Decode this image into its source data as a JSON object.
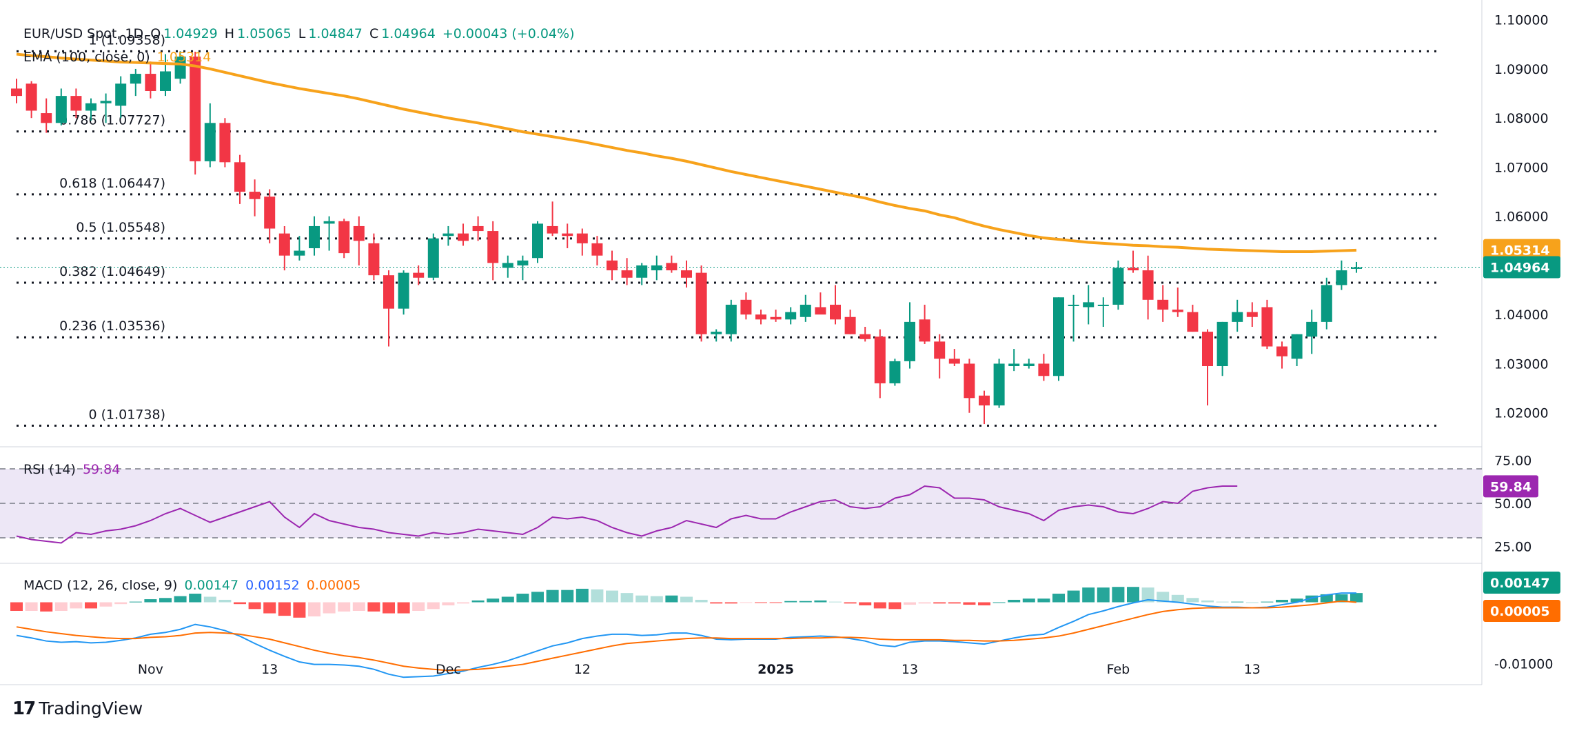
{
  "legend": {
    "symbol": "EUR/USD Spot, 1D",
    "open_label": "O",
    "open": "1.04929",
    "high_label": "H",
    "high": "1.05065",
    "low_label": "L",
    "low": "1.04847",
    "close_label": "C",
    "close": "1.04964",
    "change": "+0.00043 (+0.04%)",
    "ema_label": "EMA (100, close, 0)",
    "ema_value": "1.05314",
    "rsi_label": "RSI (14)",
    "rsi_value": "59.84",
    "macd_label": "MACD (12, 26, close, 9)",
    "macd_hist": "0.00147",
    "macd_line": "0.00152",
    "macd_signal": "0.00005"
  },
  "branding": {
    "name": "TradingView",
    "mark": "17"
  },
  "colors": {
    "up": "#089981",
    "down": "#f23645",
    "ema": "#f7a21b",
    "rsi": "#9c27b0",
    "rsi_band": "#ede7f6",
    "macd": "#2196f3",
    "signal": "#ff6d00",
    "hist_up_strong": "#26a69a",
    "hist_up_weak": "#b2dfdb",
    "hist_down_strong": "#ff5252",
    "hist_down_weak": "#ffcdd2"
  },
  "chart_data": [
    {
      "type": "candlestick",
      "title": "EUR/USD Spot, 1D",
      "x_ticks": [
        "Nov",
        "13",
        "Dec",
        "12",
        "2025",
        "13",
        "Feb",
        "13"
      ],
      "y_ticks": [
        "1.10000",
        "1.09000",
        "1.08000",
        "1.07000",
        "1.06000",
        "1.04000",
        "1.03000",
        "1.02000"
      ],
      "ylim": [
        1.0135,
        1.1015
      ],
      "last_price": "1.04964",
      "ema_price": "1.05314",
      "ohlc": [
        [
          1.086,
          1.088,
          1.083,
          1.0845
        ],
        [
          1.087,
          1.0875,
          1.08,
          1.0815
        ],
        [
          1.081,
          1.084,
          1.077,
          1.079
        ],
        [
          1.079,
          1.086,
          1.0785,
          1.0845
        ],
        [
          1.0845,
          1.086,
          1.08,
          1.0815
        ],
        [
          1.0815,
          1.084,
          1.0795,
          1.083
        ],
        [
          1.083,
          1.085,
          1.079,
          1.0835
        ],
        [
          1.0825,
          1.0885,
          1.08,
          1.087
        ],
        [
          1.087,
          1.09,
          1.0845,
          1.089
        ],
        [
          1.089,
          1.0915,
          1.084,
          1.0855
        ],
        [
          1.0855,
          1.093,
          1.0845,
          1.0895
        ],
        [
          1.088,
          1.0936,
          1.087,
          1.0925
        ],
        [
          1.0925,
          1.0935,
          1.0685,
          1.0712
        ],
        [
          1.0712,
          1.083,
          1.07,
          1.079
        ],
        [
          1.079,
          1.08,
          1.07,
          1.071
        ],
        [
          1.071,
          1.0725,
          1.0625,
          1.065
        ],
        [
          1.065,
          1.0675,
          1.06,
          1.0635
        ],
        [
          1.064,
          1.0655,
          1.0545,
          1.0575
        ],
        [
          1.0565,
          1.058,
          1.049,
          1.052
        ],
        [
          1.052,
          1.056,
          1.051,
          1.053
        ],
        [
          1.0535,
          1.06,
          1.052,
          1.058
        ],
        [
          1.0585,
          1.06,
          1.053,
          1.059
        ],
        [
          1.059,
          1.0595,
          1.0515,
          1.0525
        ],
        [
          1.058,
          1.06,
          1.05,
          1.055
        ],
        [
          1.0545,
          1.0565,
          1.047,
          1.048
        ],
        [
          1.048,
          1.049,
          1.0335,
          1.0412
        ],
        [
          1.0412,
          1.049,
          1.04,
          1.0485
        ],
        [
          1.0485,
          1.05,
          1.046,
          1.0475
        ],
        [
          1.0475,
          1.0565,
          1.047,
          1.0555
        ],
        [
          1.056,
          1.058,
          1.054,
          1.0565
        ],
        [
          1.0565,
          1.0585,
          1.054,
          1.055
        ],
        [
          1.058,
          1.06,
          1.055,
          1.057
        ],
        [
          1.057,
          1.059,
          1.047,
          1.0505
        ],
        [
          1.0495,
          1.052,
          1.0475,
          1.0505
        ],
        [
          1.05,
          1.052,
          1.047,
          1.051
        ],
        [
          1.0515,
          1.059,
          1.0505,
          1.0585
        ],
        [
          1.058,
          1.063,
          1.056,
          1.0565
        ],
        [
          1.0565,
          1.0585,
          1.0535,
          1.056
        ],
        [
          1.0565,
          1.0575,
          1.052,
          1.0545
        ],
        [
          1.0545,
          1.056,
          1.05,
          1.052
        ],
        [
          1.051,
          1.053,
          1.047,
          1.049
        ],
        [
          1.049,
          1.0515,
          1.046,
          1.0475
        ],
        [
          1.0475,
          1.0505,
          1.046,
          1.05
        ],
        [
          1.049,
          1.052,
          1.047,
          1.05
        ],
        [
          1.0505,
          1.052,
          1.0485,
          1.049
        ],
        [
          1.049,
          1.051,
          1.0455,
          1.0475
        ],
        [
          1.0485,
          1.05,
          1.0345,
          1.036
        ],
        [
          1.036,
          1.037,
          1.0345,
          1.0365
        ],
        [
          1.036,
          1.043,
          1.0345,
          1.042
        ],
        [
          1.043,
          1.0445,
          1.039,
          1.04
        ],
        [
          1.04,
          1.041,
          1.038,
          1.039
        ],
        [
          1.0395,
          1.041,
          1.0385,
          1.039
        ],
        [
          1.039,
          1.0415,
          1.038,
          1.0405
        ],
        [
          1.0395,
          1.044,
          1.0385,
          1.042
        ],
        [
          1.0415,
          1.0445,
          1.0405,
          1.04
        ],
        [
          1.042,
          1.046,
          1.038,
          1.039
        ],
        [
          1.0395,
          1.041,
          1.036,
          1.036
        ],
        [
          1.036,
          1.0375,
          1.0345,
          1.035
        ],
        [
          1.0355,
          1.037,
          1.023,
          1.026
        ],
        [
          1.026,
          1.031,
          1.0255,
          1.0305
        ],
        [
          1.0305,
          1.0425,
          1.029,
          1.0385
        ],
        [
          1.039,
          1.042,
          1.034,
          1.0345
        ],
        [
          1.0345,
          1.036,
          1.027,
          1.031
        ],
        [
          1.031,
          1.033,
          1.0295,
          1.03
        ],
        [
          1.03,
          1.031,
          1.02,
          1.023
        ],
        [
          1.0235,
          1.0245,
          1.0177,
          1.0215
        ],
        [
          1.0215,
          1.031,
          1.021,
          1.03
        ],
        [
          1.0295,
          1.033,
          1.0285,
          1.03
        ],
        [
          1.0295,
          1.031,
          1.029,
          1.03
        ],
        [
          1.03,
          1.032,
          1.0265,
          1.0275
        ],
        [
          1.0275,
          1.0435,
          1.0265,
          1.0435
        ],
        [
          1.042,
          1.044,
          1.0345,
          1.042
        ],
        [
          1.0415,
          1.046,
          1.038,
          1.0425
        ],
        [
          1.042,
          1.0435,
          1.0375,
          1.042
        ],
        [
          1.042,
          1.051,
          1.041,
          1.0495
        ],
        [
          1.0495,
          1.053,
          1.0485,
          1.049
        ],
        [
          1.049,
          1.052,
          1.039,
          1.043
        ],
        [
          1.043,
          1.046,
          1.0385,
          1.041
        ],
        [
          1.041,
          1.0455,
          1.0395,
          1.0405
        ],
        [
          1.0405,
          1.042,
          1.0365,
          1.0365
        ],
        [
          1.0365,
          1.037,
          1.0215,
          1.0295
        ],
        [
          1.0295,
          1.0385,
          1.0275,
          1.0385
        ],
        [
          1.0385,
          1.043,
          1.0365,
          1.0405
        ],
        [
          1.0405,
          1.0425,
          1.0375,
          1.0395
        ],
        [
          1.0415,
          1.043,
          1.033,
          1.0335
        ],
        [
          1.0335,
          1.0345,
          1.029,
          1.0315
        ],
        [
          1.031,
          1.036,
          1.0295,
          1.036
        ],
        [
          1.0355,
          1.041,
          1.032,
          1.0385
        ],
        [
          1.0385,
          1.0475,
          1.037,
          1.046
        ],
        [
          1.046,
          1.051,
          1.045,
          1.049
        ],
        [
          1.0493,
          1.0507,
          1.0485,
          1.0496
        ]
      ],
      "ema": [
        1.093,
        1.0927,
        1.0925,
        1.0922,
        1.092,
        1.0918,
        1.0916,
        1.0914,
        1.0913,
        1.0912,
        1.0911,
        1.091,
        1.0906,
        1.09,
        1.0893,
        1.0886,
        1.0879,
        1.0872,
        1.0866,
        1.086,
        1.0855,
        1.085,
        1.0845,
        1.0839,
        1.0832,
        1.0825,
        1.0818,
        1.0812,
        1.0806,
        1.08,
        1.0795,
        1.079,
        1.0784,
        1.0778,
        1.0772,
        1.0767,
        1.0762,
        1.0757,
        1.0752,
        1.0746,
        1.074,
        1.0734,
        1.0729,
        1.0723,
        1.0718,
        1.0712,
        1.0705,
        1.0698,
        1.0691,
        1.0685,
        1.0679,
        1.0673,
        1.0667,
        1.0661,
        1.0655,
        1.0649,
        1.0643,
        1.0637,
        1.0629,
        1.0622,
        1.0616,
        1.0611,
        1.0603,
        1.0597,
        1.0588,
        1.058,
        1.0573,
        1.0567,
        1.0561,
        1.0556,
        1.0553,
        1.055,
        1.0547,
        1.0545,
        1.0543,
        1.0541,
        1.054,
        1.0538,
        1.0537,
        1.0535,
        1.0533,
        1.0532,
        1.0531,
        1.053,
        1.0529,
        1.0528,
        1.0528,
        1.0528,
        1.0529,
        1.053,
        1.0531
      ],
      "fibonacci": [
        {
          "label": "1 (1.09358)",
          "value": 1.09358
        },
        {
          "label": "0.786 (1.07727)",
          "value": 1.07727
        },
        {
          "label": "0.618 (1.06447)",
          "value": 1.06447
        },
        {
          "label": "0.5 (1.05548)",
          "value": 1.05548
        },
        {
          "label": "0.382 (1.04649)",
          "value": 1.04649
        },
        {
          "label": "0.236 (1.03536)",
          "value": 1.03536
        },
        {
          "label": "0 (1.01738)",
          "value": 1.01738
        }
      ]
    },
    {
      "type": "line",
      "title": "RSI (14)",
      "y_ticks": [
        "75.00",
        "50.00",
        "25.00"
      ],
      "ylim": [
        16,
        82
      ],
      "band": [
        30,
        70
      ],
      "last_value": "59.84",
      "values": [
        31,
        29,
        28,
        27,
        33,
        32,
        34,
        35,
        37,
        40,
        44,
        47,
        43,
        39,
        42,
        45,
        48,
        51,
        42,
        36,
        44,
        40,
        38,
        36,
        35,
        33,
        32,
        31,
        33,
        32,
        33,
        35,
        34,
        33,
        32,
        36,
        42,
        41,
        42,
        40,
        36,
        33,
        31,
        34,
        36,
        40,
        38,
        36,
        41,
        43,
        41,
        41,
        45,
        48,
        51,
        52,
        48,
        47,
        48,
        53,
        55,
        60,
        59,
        53,
        53,
        52,
        48,
        46,
        44,
        40,
        46,
        48,
        49,
        48,
        45,
        44,
        47,
        51,
        50,
        57,
        59,
        60,
        60
      ]
    },
    {
      "type": "bar+line",
      "title": "MACD (12, 26, close, 9)",
      "y_ticks": [
        "-0.01000"
      ],
      "ylim": [
        -0.0134,
        0.006
      ],
      "last_hist": "0.00147",
      "last_signal": "0.00005",
      "macd": [
        -0.0054,
        -0.0058,
        -0.0063,
        -0.0065,
        -0.0064,
        -0.0066,
        -0.0065,
        -0.0062,
        -0.0058,
        -0.0052,
        -0.0049,
        -0.0044,
        -0.0036,
        -0.004,
        -0.0046,
        -0.0055,
        -0.0067,
        -0.0078,
        -0.0088,
        -0.0097,
        -0.0101,
        -0.0101,
        -0.0102,
        -0.0104,
        -0.0109,
        -0.0117,
        -0.0122,
        -0.0121,
        -0.012,
        -0.0116,
        -0.0112,
        -0.0106,
        -0.0101,
        -0.0095,
        -0.0087,
        -0.0079,
        -0.0071,
        -0.0066,
        -0.0059,
        -0.0055,
        -0.0052,
        -0.0052,
        -0.0054,
        -0.0053,
        -0.005,
        -0.005,
        -0.0054,
        -0.006,
        -0.0061,
        -0.006,
        -0.006,
        -0.006,
        -0.0057,
        -0.0056,
        -0.0055,
        -0.0056,
        -0.0059,
        -0.0063,
        -0.007,
        -0.0072,
        -0.0065,
        -0.0063,
        -0.0063,
        -0.0064,
        -0.0066,
        -0.0068,
        -0.0063,
        -0.0058,
        -0.0054,
        -0.0052,
        -0.0041,
        -0.0031,
        -0.002,
        -0.0014,
        -0.0007,
        -0.0001,
        0.0004,
        0.0002,
        0.0,
        -0.0003,
        -0.0006,
        -0.0008,
        -0.0008,
        -0.0009,
        -0.0008,
        -0.0004,
        0.0,
        0.0007,
        0.0012,
        0.0015,
        0.0015
      ],
      "signal": [
        -0.004,
        -0.0044,
        -0.0048,
        -0.0051,
        -0.0054,
        -0.0056,
        -0.0058,
        -0.0059,
        -0.0059,
        -0.0057,
        -0.0056,
        -0.0054,
        -0.005,
        -0.0049,
        -0.005,
        -0.0052,
        -0.0056,
        -0.006,
        -0.0066,
        -0.0072,
        -0.0078,
        -0.0083,
        -0.0087,
        -0.009,
        -0.0094,
        -0.0099,
        -0.0104,
        -0.0107,
        -0.0109,
        -0.0111,
        -0.011,
        -0.0109,
        -0.0107,
        -0.0104,
        -0.0101,
        -0.0096,
        -0.0091,
        -0.0086,
        -0.0081,
        -0.0076,
        -0.0071,
        -0.0067,
        -0.0065,
        -0.0063,
        -0.0061,
        -0.0059,
        -0.0058,
        -0.0058,
        -0.0059,
        -0.0059,
        -0.0059,
        -0.0059,
        -0.0059,
        -0.0058,
        -0.0058,
        -0.0057,
        -0.0057,
        -0.0058,
        -0.006,
        -0.0061,
        -0.0061,
        -0.0061,
        -0.0061,
        -0.0062,
        -0.0062,
        -0.0063,
        -0.0063,
        -0.0062,
        -0.006,
        -0.0058,
        -0.0055,
        -0.005,
        -0.0044,
        -0.0038,
        -0.0032,
        -0.0026,
        -0.002,
        -0.0015,
        -0.0012,
        -0.001,
        -0.0009,
        -0.0009,
        -0.0009,
        -0.0009,
        -0.0009,
        -0.0008,
        -0.0006,
        -0.0004,
        -0.0001,
        0.0002,
        0.0
      ]
    }
  ],
  "x_axis": {
    "labels": [
      {
        "text": "Nov",
        "bar": 9,
        "bold": false
      },
      {
        "text": "13",
        "bar": 17,
        "bold": false
      },
      {
        "text": "Dec",
        "bar": 29,
        "bold": false
      },
      {
        "text": "12",
        "bar": 38,
        "bold": false
      },
      {
        "text": "2025",
        "bar": 51,
        "bold": true
      },
      {
        "text": "13",
        "bar": 60,
        "bold": false
      },
      {
        "text": "Feb",
        "bar": 74,
        "bold": false
      },
      {
        "text": "13",
        "bar": 83,
        "bold": false
      }
    ]
  }
}
